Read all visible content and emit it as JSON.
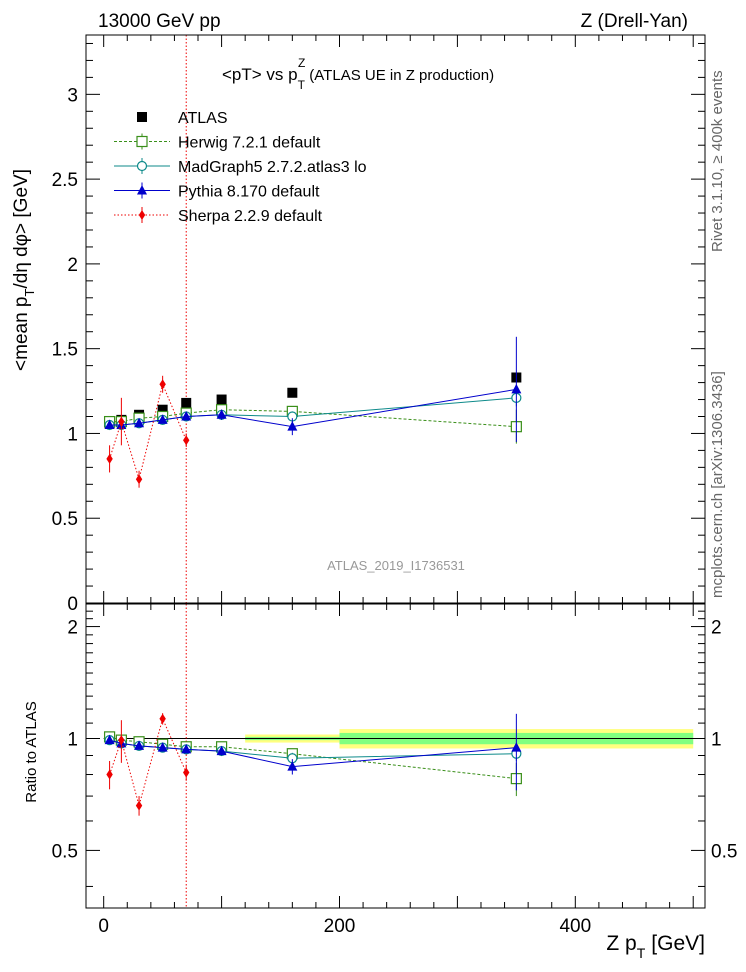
{
  "header": {
    "left": "13000 GeV pp",
    "right": "Z (Drell-Yan)"
  },
  "side_labels": {
    "rivet": "Rivet 3.1.10, ≥ 400k events",
    "mcplots": "mcplots.cern.ch [arXiv:1306.3436]"
  },
  "watermark": "ATLAS_2019_I1736531",
  "colors": {
    "atlas": "#000000",
    "herwig": "#3a8f1a",
    "madgraph": "#0d8a8a",
    "pythia": "#0000cc",
    "sherpa": "#ee0000",
    "band_yellow": "#ffff80",
    "band_green": "#80ff80"
  },
  "chart_data": [
    {
      "type": "scatter",
      "panel": "main",
      "title": "<pT> vs p_T^Z (ATLAS UE in Z production)",
      "title_parts": {
        "lead": "<pT> vs p",
        "sup": "Z",
        "sub": "T",
        "tail": "(ATLAS UE in Z production)"
      },
      "ylabel": "<mean p_T/dη dφ> [GeV]",
      "ylabel_parts": {
        "lead": "<mean p",
        "sub": "T",
        "tail": "/dη dφ> [GeV]"
      },
      "xlim": [
        -15,
        510
      ],
      "ylim": [
        0,
        3.35
      ],
      "y_ticks": [
        0,
        0.5,
        1,
        1.5,
        2,
        2.5,
        3
      ],
      "y_tick_labels": [
        "0",
        "0.5",
        "1",
        "1.5",
        "2",
        "2.5",
        "3"
      ],
      "vertical_line_x": 70,
      "legend_position": "top-left",
      "series": [
        {
          "name": "ATLAS",
          "key": "atlas",
          "marker": "square-filled",
          "line": "none",
          "x": [
            5,
            15,
            30,
            50,
            70,
            100,
            160,
            350
          ],
          "y": [
            1.06,
            1.08,
            1.11,
            1.14,
            1.18,
            1.2,
            1.24,
            1.33
          ]
        },
        {
          "name": "Herwig 7.2.1 default",
          "key": "herwig",
          "marker": "square-open",
          "line": "dashed",
          "x": [
            5,
            15,
            30,
            50,
            70,
            100,
            160,
            350
          ],
          "y": [
            1.07,
            1.07,
            1.09,
            1.1,
            1.12,
            1.14,
            1.13,
            1.04
          ],
          "err": [
            0.02,
            0.02,
            0.02,
            0.02,
            0.02,
            0.02,
            0.02,
            0.1
          ]
        },
        {
          "name": "MadGraph5 2.7.2.atlas3 lo",
          "key": "madgraph",
          "marker": "circle-open",
          "line": "solid",
          "x": [
            5,
            15,
            30,
            50,
            70,
            100,
            160,
            350
          ],
          "y": [
            1.05,
            1.05,
            1.06,
            1.08,
            1.1,
            1.11,
            1.1,
            1.21
          ],
          "err": [
            0.02,
            0.02,
            0.02,
            0.02,
            0.02,
            0.02,
            0.03,
            0.05
          ]
        },
        {
          "name": "Pythia 8.170 default",
          "key": "pythia",
          "marker": "triangle-filled",
          "line": "solid",
          "x": [
            5,
            15,
            30,
            50,
            70,
            100,
            160,
            350
          ],
          "y": [
            1.05,
            1.05,
            1.06,
            1.08,
            1.1,
            1.11,
            1.04,
            1.26
          ],
          "err": [
            0.02,
            0.02,
            0.02,
            0.02,
            0.02,
            0.03,
            0.05,
            0.31
          ]
        },
        {
          "name": "Sherpa 2.2.9 default",
          "key": "sherpa",
          "marker": "diamond-filled",
          "line": "dotted",
          "x": [
            5,
            15,
            30,
            50,
            70
          ],
          "y": [
            0.85,
            1.07,
            0.73,
            1.29,
            0.96
          ],
          "err": [
            0.08,
            0.14,
            0.05,
            0.05,
            0.04
          ]
        }
      ]
    },
    {
      "type": "scatter",
      "panel": "ratio",
      "xlabel": "Z p_T [GeV]",
      "xlabel_parts": {
        "lead": "Z p",
        "sub": "T",
        "tail": "[GeV]"
      },
      "ylabel": "Ratio to ATLAS",
      "xlim": [
        -15,
        510
      ],
      "ylim": [
        0.35,
        2.3
      ],
      "y_ticks": [
        0.5,
        1,
        2
      ],
      "y_tick_labels": [
        "0.5",
        "1",
        "2"
      ],
      "x_ticks": [
        0,
        200,
        400
      ],
      "x_tick_labels": [
        "0",
        "200",
        "400"
      ],
      "vertical_line_x": 70,
      "bands": [
        {
          "x0": 120,
          "x1": 200,
          "yellow": [
            0.975,
            1.025
          ],
          "green": [
            0.99,
            1.01
          ]
        },
        {
          "x0": 200,
          "x1": 500,
          "yellow": [
            0.94,
            1.06
          ],
          "green": [
            0.965,
            1.035
          ]
        }
      ],
      "series": [
        {
          "name": "Herwig 7.2.1 default",
          "key": "herwig",
          "marker": "square-open",
          "line": "dashed",
          "x": [
            5,
            15,
            30,
            50,
            70,
            100,
            160,
            350
          ],
          "y": [
            1.01,
            0.99,
            0.98,
            0.965,
            0.95,
            0.95,
            0.91,
            0.78
          ],
          "err": [
            0.02,
            0.02,
            0.02,
            0.02,
            0.02,
            0.02,
            0.02,
            0.08
          ]
        },
        {
          "name": "MadGraph5 2.7.2.atlas3 lo",
          "key": "madgraph",
          "marker": "circle-open",
          "line": "solid",
          "x": [
            5,
            15,
            30,
            50,
            70,
            100,
            160,
            350
          ],
          "y": [
            0.99,
            0.97,
            0.955,
            0.945,
            0.935,
            0.925,
            0.885,
            0.91
          ],
          "err": [
            0.02,
            0.02,
            0.02,
            0.02,
            0.02,
            0.02,
            0.03,
            0.04
          ]
        },
        {
          "name": "Pythia 8.170 default",
          "key": "pythia",
          "marker": "triangle-filled",
          "line": "solid",
          "x": [
            5,
            15,
            30,
            50,
            70,
            100,
            160,
            350
          ],
          "y": [
            0.99,
            0.97,
            0.955,
            0.945,
            0.935,
            0.925,
            0.84,
            0.945
          ],
          "err": [
            0.02,
            0.02,
            0.02,
            0.02,
            0.02,
            0.025,
            0.04,
            0.22
          ]
        },
        {
          "name": "Sherpa 2.2.9 default",
          "key": "sherpa",
          "marker": "diamond-filled",
          "line": "dotted",
          "x": [
            5,
            15,
            30,
            50,
            70
          ],
          "y": [
            0.8,
            0.99,
            0.66,
            1.13,
            0.81
          ],
          "err": [
            0.07,
            0.13,
            0.04,
            0.04,
            0.04
          ]
        }
      ]
    }
  ]
}
